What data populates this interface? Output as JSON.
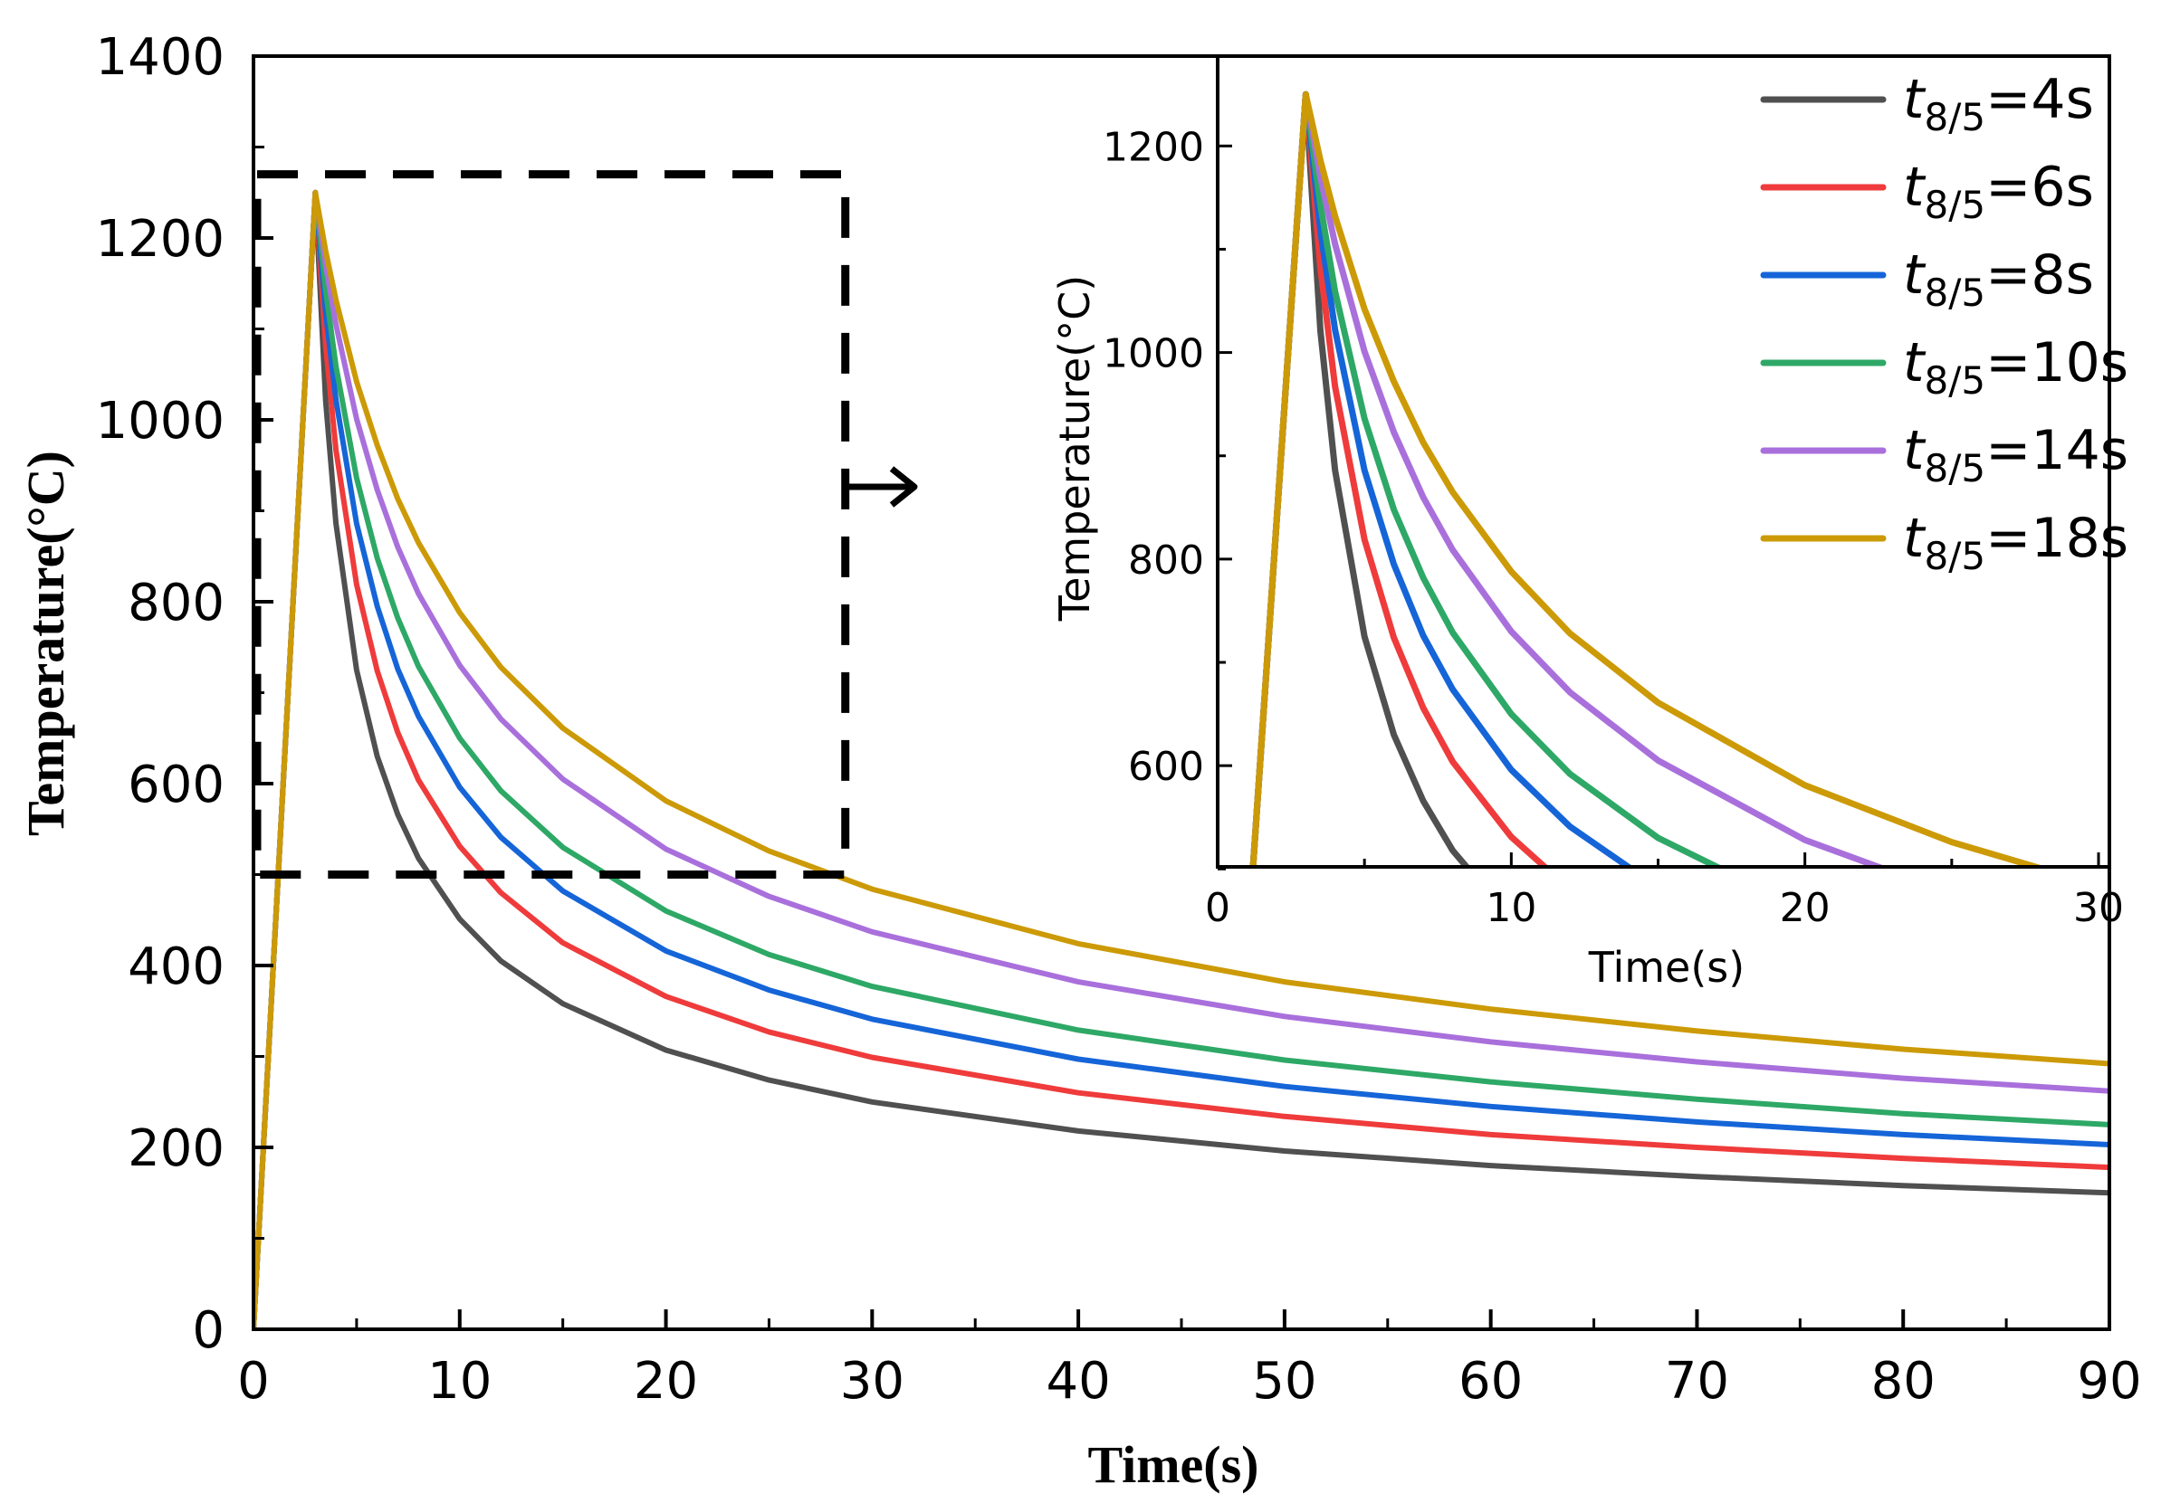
{
  "chart_data": {
    "type": "line",
    "xlabel": "Time(s)",
    "ylabel": "Temperature(°C)",
    "xlim": [
      0,
      90
    ],
    "ylim": [
      0,
      1400
    ],
    "xticks": [
      "0",
      "10",
      "20",
      "30",
      "40",
      "50",
      "60",
      "70",
      "80",
      "90"
    ],
    "yticks": [
      "0",
      "200",
      "400",
      "600",
      "800",
      "1000",
      "1200",
      "1400"
    ],
    "legend_position": "top-right",
    "x": [
      0,
      3,
      3.5,
      4,
      5,
      6,
      7,
      8,
      10,
      12,
      15,
      20,
      25,
      30,
      40,
      50,
      60,
      70,
      80,
      90
    ],
    "series": [
      {
        "name": "t8/5=4s",
        "color": "#505050",
        "values": [
          0,
          1250,
          1021,
          886,
          725,
          630,
          566,
          518,
          451,
          405,
          358,
          307,
          274,
          250,
          218,
          196,
          180,
          168,
          158,
          150
        ]
      },
      {
        "name": "t8/5=6s",
        "color": "#ef3b3b",
        "values": [
          0,
          1250,
          1082,
          967,
          819,
          724,
          656,
          604,
          531,
          480,
          425,
          366,
          327,
          299,
          260,
          234,
          214,
          200,
          188,
          178
        ]
      },
      {
        "name": "t8/5=8s",
        "color": "#1565d8",
        "values": [
          0,
          1250,
          1118,
          1022,
          886,
          795,
          726,
          674,
          596,
          541,
          482,
          416,
          373,
          341,
          297,
          267,
          245,
          228,
          214,
          203
        ]
      },
      {
        "name": "t8/5=10s",
        "color": "#2ea866",
        "values": [
          0,
          1250,
          1143,
          1059,
          936,
          848,
          782,
          729,
          650,
          592,
          530,
          460,
          412,
          377,
          329,
          296,
          272,
          253,
          237,
          225
        ]
      },
      {
        "name": "t8/5=14s",
        "color": "#a970dc",
        "values": [
          0,
          1250,
          1170,
          1105,
          1001,
          923,
          860,
          809,
          730,
          671,
          605,
          528,
          476,
          437,
          382,
          344,
          316,
          294,
          276,
          262
        ]
      },
      {
        "name": "t8/5=18s",
        "color": "#cc9a06",
        "values": [
          0,
          1250,
          1186,
          1132,
          1042,
          972,
          913,
          865,
          788,
          728,
          661,
          581,
          526,
          484,
          424,
          382,
          352,
          328,
          308,
          292
        ]
      }
    ],
    "zoom_box": {
      "x": [
        0,
        28.7
      ],
      "y": [
        500,
        1270
      ]
    },
    "inset": {
      "xlabel": "Time(s)",
      "ylabel": "Temperature(°C)",
      "xlim": [
        0,
        30
      ],
      "ylim": [
        502,
        1287
      ],
      "xticks": [
        "0",
        "10",
        "20",
        "30"
      ],
      "yticks": [
        "600",
        "800",
        "1000",
        "1200"
      ]
    }
  }
}
